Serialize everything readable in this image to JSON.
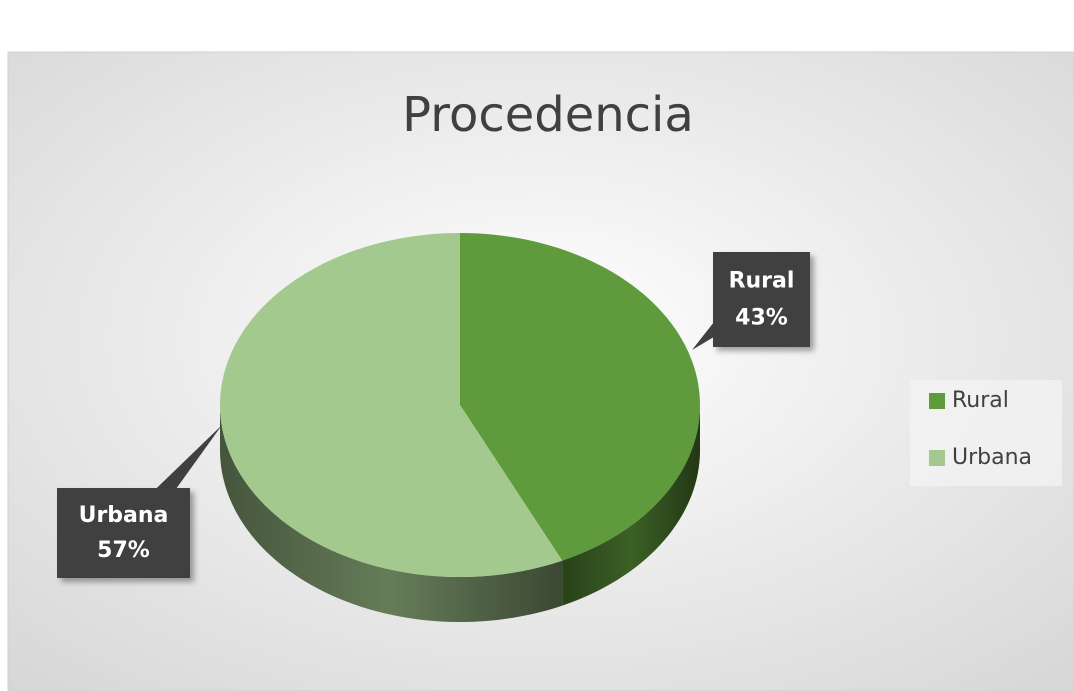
{
  "chart_data": {
    "type": "pie",
    "title": "Procedencia",
    "categories": [
      "Rural",
      "Urbana"
    ],
    "values": [
      43,
      57
    ],
    "value_labels": [
      "43%",
      "57%"
    ],
    "colors": [
      "#5f9b3c",
      "#a4c98f"
    ],
    "legend": "right"
  }
}
